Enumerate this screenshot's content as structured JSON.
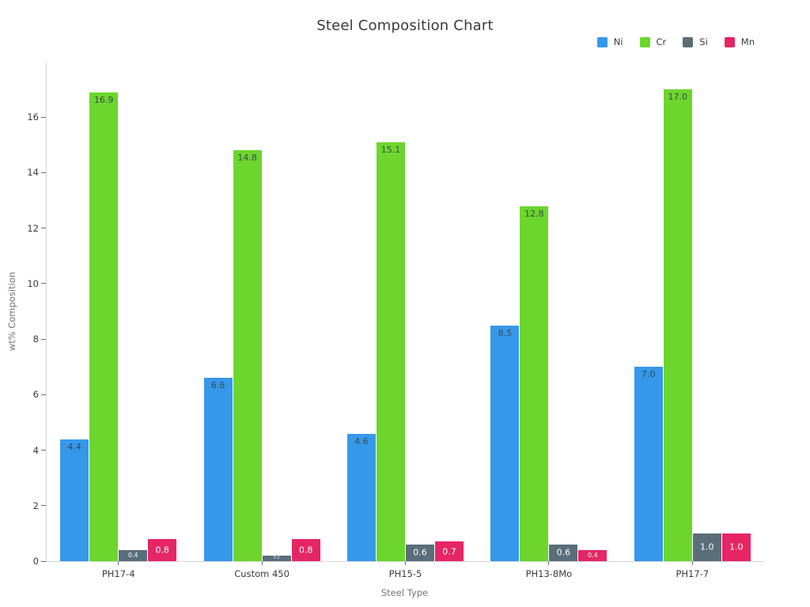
{
  "chart_data": {
    "type": "bar",
    "title": "Steel Composition Chart",
    "xlabel": "Steel Type",
    "ylabel": "wt% Composition",
    "categories": [
      "PH17-4",
      "Custom 450",
      "PH15-5",
      "PH13-8Mo",
      "PH17-7"
    ],
    "series": [
      {
        "name": "Ni",
        "color": "#3598eb",
        "label_color": "#3f474e",
        "values": [
          4.4,
          6.6,
          4.6,
          8.5,
          7.0
        ]
      },
      {
        "name": "Cr",
        "color": "#6cd62c",
        "label_color": "#3f474e",
        "values": [
          16.9,
          14.8,
          15.1,
          12.8,
          17.0
        ]
      },
      {
        "name": "Si",
        "color": "#5a6d7b",
        "label_color": "#ffffff",
        "values": [
          0.4,
          0.2,
          0.6,
          0.6,
          1.0
        ]
      },
      {
        "name": "Mn",
        "color": "#e62564",
        "label_color": "#ffffff",
        "values": [
          0.8,
          0.8,
          0.7,
          0.4,
          1.0
        ]
      }
    ],
    "value_label_format": ".1f",
    "yticks": [
      0,
      2,
      4,
      6,
      8,
      10,
      12,
      14,
      16
    ],
    "ylim": [
      0,
      18
    ],
    "grid": false,
    "legend_position": "top-right",
    "colors": {
      "axis_line": "#d6d6d6",
      "tick_text": "#3b3b3b",
      "axis_title_text": "#757575",
      "title_text": "#3a3a3a",
      "background": "#ffffff"
    }
  }
}
